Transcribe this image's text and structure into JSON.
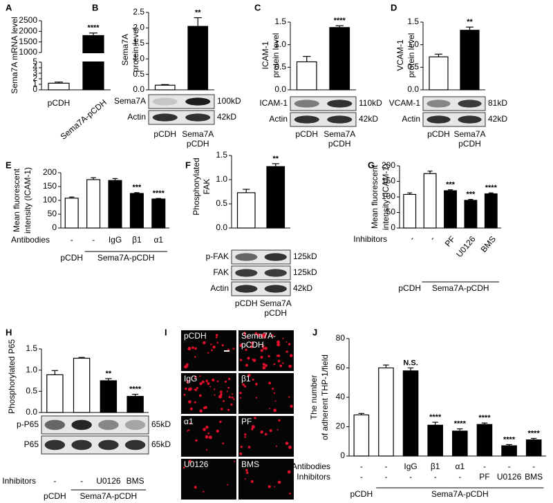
{
  "chart_data": [
    {
      "type": "bar",
      "label": "A",
      "ylabel": [
        "Sema7A mRNA level"
      ],
      "categories": [
        "pCDH",
        "Sema7A-pCDH"
      ],
      "values": [
        1.2,
        1800
      ],
      "errors": [
        0.2,
        120
      ],
      "colors": [
        "#ffffff",
        "#000000"
      ],
      "ylim": [
        0,
        2500
      ],
      "axis_break": [
        5,
        1000
      ],
      "yticks": [
        0,
        1,
        2,
        3,
        4,
        5,
        1000,
        1500,
        2000,
        2500
      ],
      "annotations": [
        null,
        "****"
      ]
    },
    {
      "type": "bar",
      "label": "B",
      "ylabel": [
        "Sema7A",
        "protein level"
      ],
      "categories": [
        "pCDH",
        [
          "Sema7A",
          "pCDH"
        ]
      ],
      "values": [
        0.15,
        2.05
      ],
      "errors": [
        0.02,
        0.28
      ],
      "colors": [
        "#ffffff",
        "#000000"
      ],
      "ylim": [
        0,
        2.5
      ],
      "yticks": [
        {
          "value": 0,
          "label": "0.0"
        },
        0.5,
        {
          "value": 1,
          "label": "1.0"
        },
        1.5,
        {
          "value": 2,
          "label": "2.0"
        },
        2.5
      ],
      "annotations": [
        null,
        "**"
      ],
      "blots": [
        {
          "name": "Sema7A",
          "size": "100kD"
        },
        {
          "name": "Actin",
          "size": "42kD"
        }
      ]
    },
    {
      "type": "bar",
      "label": "C",
      "ylabel": [
        "ICAM-1",
        "protein level"
      ],
      "categories": [
        "pCDH",
        [
          "Sema7A",
          "pCDH"
        ]
      ],
      "values": [
        0.62,
        1.38
      ],
      "errors": [
        0.12,
        0.04
      ],
      "colors": [
        "#ffffff",
        "#000000"
      ],
      "ylim": [
        0,
        1.5
      ],
      "yticks": [
        {
          "value": 0,
          "label": "0.0"
        },
        0.5,
        {
          "value": 1,
          "label": "1.0"
        },
        1.5
      ],
      "annotations": [
        null,
        "****"
      ],
      "blots": [
        {
          "name": "ICAM-1",
          "size": "110kD"
        },
        {
          "name": "Actin",
          "size": "42kD"
        }
      ]
    },
    {
      "type": "bar",
      "label": "D",
      "ylabel": [
        "VCAM-1",
        "protein level"
      ],
      "categories": [
        "pCDH",
        [
          "Sema7A",
          "pCDH"
        ]
      ],
      "values": [
        0.73,
        1.32
      ],
      "errors": [
        0.06,
        0.07
      ],
      "colors": [
        "#ffffff",
        "#000000"
      ],
      "ylim": [
        0,
        1.5
      ],
      "yticks": [
        {
          "value": 0,
          "label": "0.0"
        },
        0.5,
        {
          "value": 1,
          "label": "1.0"
        },
        1.5
      ],
      "annotations": [
        null,
        "**"
      ],
      "blots": [
        {
          "name": "VCAM-1",
          "size": "81kD"
        },
        {
          "name": "Actin",
          "size": "42kD"
        }
      ]
    },
    {
      "type": "bar",
      "label": "E",
      "ylabel": [
        "Mean fluorescent",
        "intensity (ICAM-1)"
      ],
      "values": [
        108,
        175,
        172,
        125,
        105
      ],
      "errors": [
        4,
        7,
        7,
        3,
        2
      ],
      "colors": [
        "#ffffff",
        "#ffffff",
        "#000000",
        "#000000",
        "#000000"
      ],
      "ylim": [
        0,
        200
      ],
      "yticks": [
        0,
        50,
        100,
        150,
        200
      ],
      "annotations": [
        null,
        null,
        null,
        "***",
        "****"
      ],
      "rows": [
        {
          "name": "Antibodies",
          "labels": [
            "-",
            "-",
            "IgG",
            "β1",
            "α1"
          ]
        }
      ],
      "group": [
        "pCDH",
        "Sema7A-pCDH"
      ]
    },
    {
      "type": "bar",
      "label": "F",
      "ylabel": [
        "Phosphorylated",
        "FAK"
      ],
      "categories": [
        "pCDH",
        [
          "Sema7A",
          "pCDH"
        ]
      ],
      "values": [
        0.73,
        1.27
      ],
      "errors": [
        0.07,
        0.06
      ],
      "colors": [
        "#ffffff",
        "#000000"
      ],
      "ylim": [
        0,
        1.5
      ],
      "yticks": [
        {
          "value": 0,
          "label": "0.0"
        },
        0.5,
        {
          "value": 1,
          "label": "1.0"
        },
        1.5
      ],
      "annotations": [
        null,
        "**"
      ],
      "blots": [
        {
          "name": "p-FAK",
          "size": "125kD"
        },
        {
          "name": "FAK",
          "size": "125kD"
        },
        {
          "name": "Actin",
          "size": "42kD"
        }
      ]
    },
    {
      "type": "bar",
      "label": "G",
      "ylabel": [
        "Mean fluorescent",
        "intensity (ICAM-1)"
      ],
      "values": [
        108,
        175,
        120,
        89,
        110
      ],
      "errors": [
        5,
        8,
        3,
        3,
        3
      ],
      "colors": [
        "#ffffff",
        "#ffffff",
        "#000000",
        "#000000",
        "#000000"
      ],
      "ylim": [
        0,
        200
      ],
      "yticks": [
        0,
        50,
        100,
        150,
        200
      ],
      "annotations": [
        null,
        null,
        "***",
        "***",
        "****"
      ],
      "rows": [
        {
          "name": "Inhibitors",
          "labels": [
            "-",
            "-",
            "PF",
            "U0126",
            "BMS"
          ]
        }
      ],
      "group": [
        "pCDH",
        "Sema7A-pCDH"
      ]
    },
    {
      "type": "bar",
      "label": "H",
      "ylabel": [
        "Phosphorylated P65"
      ],
      "values": [
        0.89,
        1.28,
        0.75,
        0.38
      ],
      "errors": [
        0.1,
        0.02,
        0.05,
        0.05
      ],
      "colors": [
        "#ffffff",
        "#ffffff",
        "#000000",
        "#000000"
      ],
      "ylim": [
        0,
        1.5
      ],
      "yticks": [
        {
          "value": 0,
          "label": "0.0"
        },
        0.5,
        {
          "value": 1,
          "label": "1.0"
        },
        1.5
      ],
      "annotations": [
        null,
        null,
        "**",
        "****"
      ],
      "blots": [
        {
          "name": "p-P65",
          "size": "65kD"
        },
        {
          "name": "P65",
          "size": "65kD"
        }
      ],
      "rows": [
        {
          "name": "Inhibitors",
          "labels": [
            "-",
            "-",
            "U0126",
            "BMS"
          ]
        }
      ],
      "group": [
        "pCDH",
        "Sema7A-pCDH"
      ]
    },
    {
      "type": "bar",
      "label": "J",
      "ylabel": [
        "The number",
        "of adherent THP-1/field"
      ],
      "values": [
        28,
        60,
        58,
        21,
        17,
        21.5,
        7,
        11
      ],
      "errors": [
        1,
        2,
        2,
        2,
        1.5,
        1,
        0.8,
        1
      ],
      "colors": [
        "#ffffff",
        "#ffffff",
        "#000000",
        "#000000",
        "#000000",
        "#000000",
        "#000000",
        "#000000"
      ],
      "ylim": [
        0,
        80
      ],
      "yticks": [
        0,
        20,
        40,
        60,
        80
      ],
      "annotations": [
        null,
        null,
        "N.S.",
        "****",
        "****",
        "****",
        "****",
        "****"
      ],
      "rows": [
        {
          "name": "Antibodies",
          "labels": [
            "-",
            "-",
            "IgG",
            "β1",
            "α1",
            "-",
            "-",
            "-"
          ]
        },
        {
          "name": "Inhibitors",
          "labels": [
            "-",
            "-",
            "-",
            "-",
            "-",
            "PF",
            "U0126",
            "BMS"
          ]
        }
      ],
      "group": [
        "pCDH",
        "Sema7A-pCDH"
      ]
    }
  ],
  "micrographs": {
    "label": "I",
    "panels": [
      [
        "pCDH"
      ],
      [
        "Sema7A-",
        "pCDH"
      ],
      [
        "IgG"
      ],
      [
        "β1"
      ],
      [
        "α1"
      ],
      [
        "PF"
      ],
      [
        "U0126"
      ],
      [
        "BMS"
      ]
    ]
  }
}
